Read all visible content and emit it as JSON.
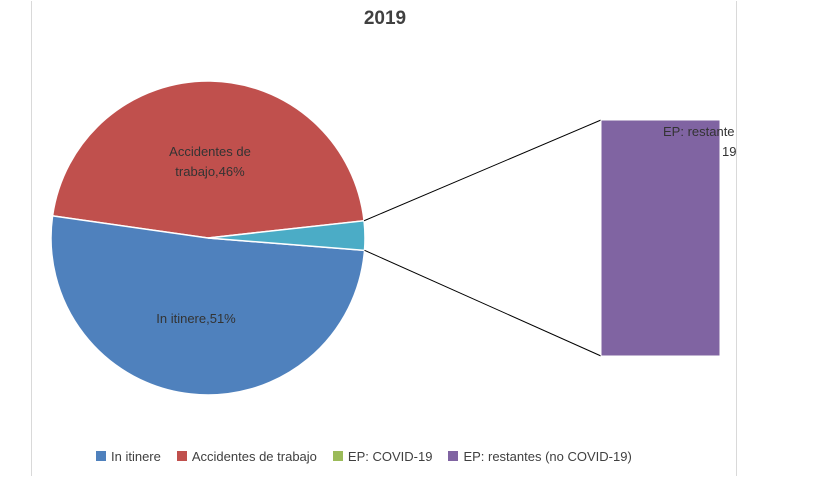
{
  "chart_data": {
    "type": "pie",
    "title": "2019",
    "slices": [
      {
        "name": "Accidentes de trabajo",
        "value": 46,
        "color": "#c0504d",
        "label_lines": [
          "Accidentes de",
          "trabajo,46%"
        ]
      },
      {
        "name": "In itinere",
        "value": 51,
        "color": "#4f81bd",
        "label_lines": [
          "In itinere,51%"
        ]
      },
      {
        "name": "EP: COVID-19",
        "value": 0,
        "color": "#9bbb59",
        "label_lines": []
      },
      {
        "name": "EP: restantes (no COVID-19)",
        "value": 3,
        "color": "#8064a2",
        "label_lines": [
          "EP: restante",
          "19"
        ]
      }
    ],
    "breakout": {
      "type": "bar-of-pie",
      "segment_color": "#4bacc6",
      "bar_color": "#8064a2",
      "bar_label_lines": [
        "EP: restante",
        "19"
      ]
    },
    "legend_position": "bottom"
  }
}
